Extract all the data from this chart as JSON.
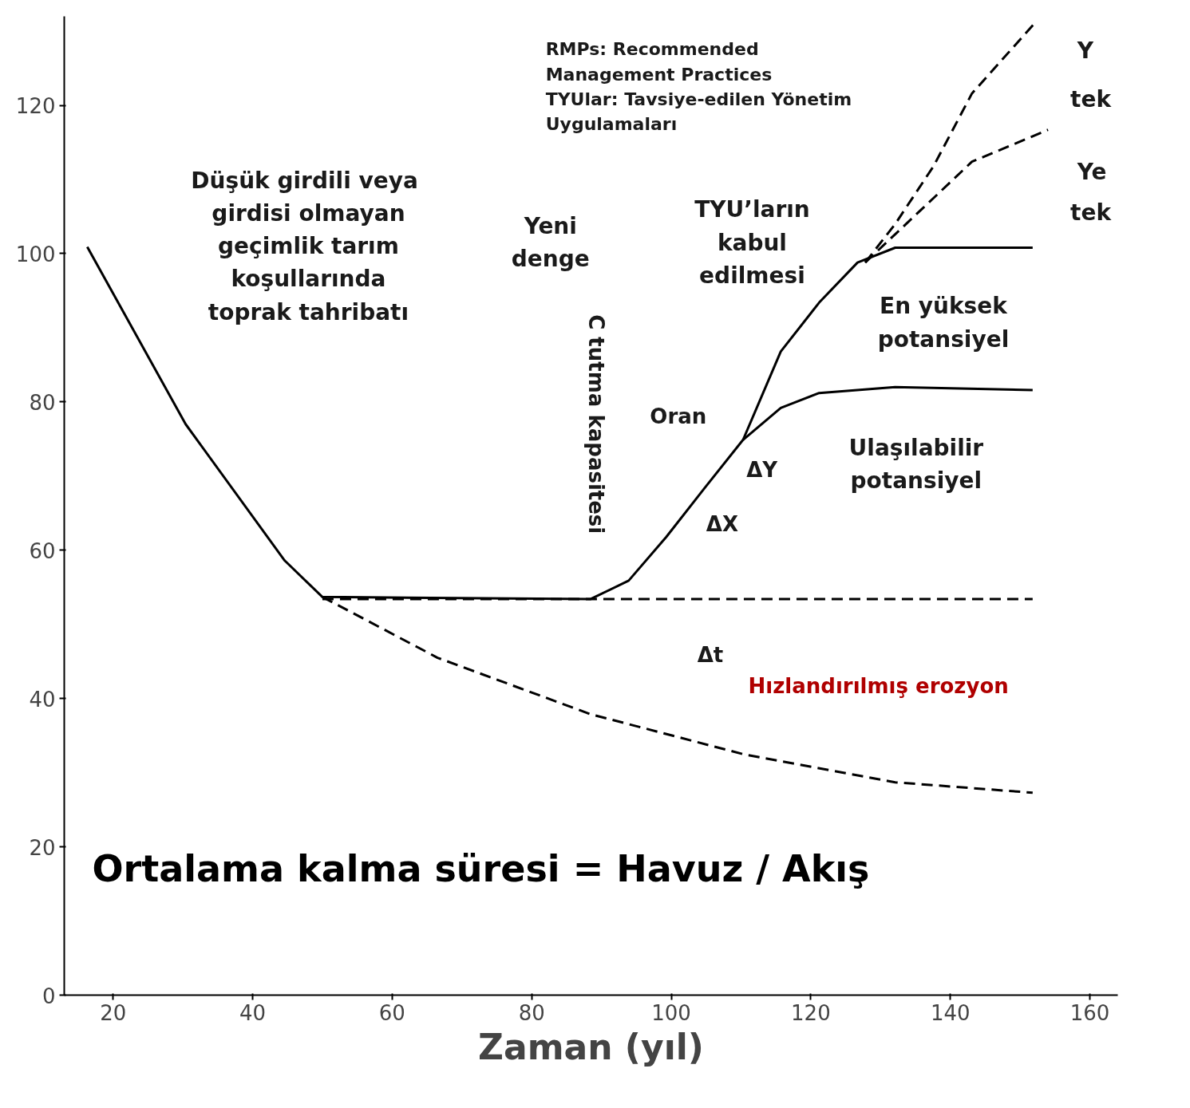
{
  "chart_data": {
    "type": "line",
    "xlabel": "Zaman (yıl)",
    "xlim": [
      13,
      164
    ],
    "ylim": [
      0,
      132
    ],
    "xticks": [
      20,
      40,
      60,
      80,
      100,
      120,
      140,
      160
    ],
    "yticks": [
      0,
      20,
      40,
      60,
      80,
      100,
      120
    ],
    "grid": false,
    "series": [
      {
        "color": "#000000",
        "line_style": "solid",
        "x": [
          16.3,
          30.4,
          44.6,
          50,
          88.4,
          93.9,
          99.3,
          104.8,
          110.3,
          115.7,
          121.2,
          126.7,
          132.1,
          151.8
        ],
        "values": [
          100.9,
          77,
          58.6,
          53.7,
          53.4,
          55.9,
          61.8,
          68.4,
          74.9,
          86.8,
          93.4,
          98.8,
          100.8,
          100.8
        ]
      },
      {
        "color": "#000000",
        "line_style": "solid",
        "x": [
          110.3,
          115.7,
          121.2,
          132.1,
          151.8
        ],
        "values": [
          74.9,
          79.2,
          81.2,
          82,
          81.6
        ]
      },
      {
        "color": "#000000",
        "line_style": "dashed",
        "x": [
          50,
          151.8
        ],
        "values": [
          53.4,
          53.4
        ]
      },
      {
        "color": "#000000",
        "line_style": "dashed",
        "x": [
          50,
          66.5,
          88.4,
          110.3,
          132.1,
          151.8
        ],
        "values": [
          53.7,
          45.5,
          37.9,
          32.5,
          28.7,
          27.3
        ]
      },
      {
        "color": "#000000",
        "line_style": "dashed",
        "x": [
          127.8,
          132.1,
          137.6,
          143.1,
          152.4
        ],
        "values": [
          98.8,
          104,
          111.8,
          121.6,
          131.4
        ]
      },
      {
        "color": "#000000",
        "line_style": "dashed",
        "x": [
          127.8,
          137.6,
          143.1,
          154
        ],
        "values": [
          98.8,
          107.5,
          112.4,
          116.7
        ]
      }
    ],
    "annotations": [
      "RMPs: Recommended\nManagement Practices\nTYUlar: Tavsiye-edilen  Yönetim\nUygulamaları",
      "Düşük  girdili veya\ngirdisi olmayan\ngeçimlik tarım\nkoşullarında\ntoprak tahribatı",
      "Yeni\ndenge",
      "TYU’ların\nkabul\nedilmesi",
      "C tutma kapasitesi",
      "Oran",
      "ΔY",
      "ΔX",
      "Δt",
      "En yüksek\npotansiyel",
      "Ulaşılabilir\npotansiyel",
      "Hızlandırılmış erozyon",
      "Ortalama kalma süresi = Havuz / Akış",
      "Y",
      "tek",
      "Ye",
      "tek"
    ]
  }
}
